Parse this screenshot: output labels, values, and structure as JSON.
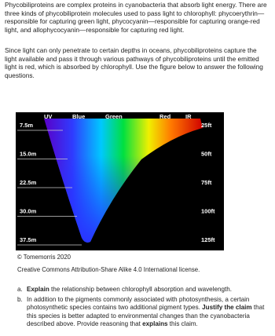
{
  "paragraphs": [
    "Phycobiliproteins are complex proteins in cyanobacteria that absorb light energy. There are three kinds of phycobiliprotein molecules used to pass light to chlorophyll: phycoerythrin—responsible for capturing green light, phycocyanin—responsible for capturing orange-red light, and allophycocyanin—responsible for capturing red light.",
    "Since light can only penetrate to certain depths in oceans, phycobiliproteins capture the light available and pass it through various pathways of phycobiliproteins until the emitted light is red, which is absorbed by chlorophyll. Use the figure below to answer the following questions."
  ],
  "figure": {
    "spectrum_labels": [
      "UV",
      "Blue",
      "Green",
      "Red",
      "IR"
    ],
    "depth_m": [
      "7.5m",
      "15.0m",
      "22.5m",
      "30.0m",
      "37.5m"
    ],
    "depth_ft": [
      "25ft",
      "50ft",
      "75ft",
      "100ft",
      "125ft"
    ]
  },
  "caption": {
    "credit": "© Tomemorris 2020",
    "license": "Creative Commons Attribution-Share Alike 4.0 International license."
  },
  "questions": [
    {
      "marker": "a.",
      "parts": [
        {
          "text": "Explain",
          "bold": true
        },
        {
          "text": " the relationship between chlorophyll absorption and wavelength.",
          "bold": false
        }
      ]
    },
    {
      "marker": "b.",
      "parts": [
        {
          "text": "In addition to the pigments commonly associated with photosynthesis, a certain photosynthetic species contains two additional pigment types. ",
          "bold": false
        },
        {
          "text": "Justify the claim",
          "bold": true
        },
        {
          "text": " that this species is better adapted to environmental changes than the cyanobacteria described above. Provide reasoning that ",
          "bold": false
        },
        {
          "text": "explains",
          "bold": true
        },
        {
          "text": " this claim.",
          "bold": false
        }
      ]
    }
  ]
}
